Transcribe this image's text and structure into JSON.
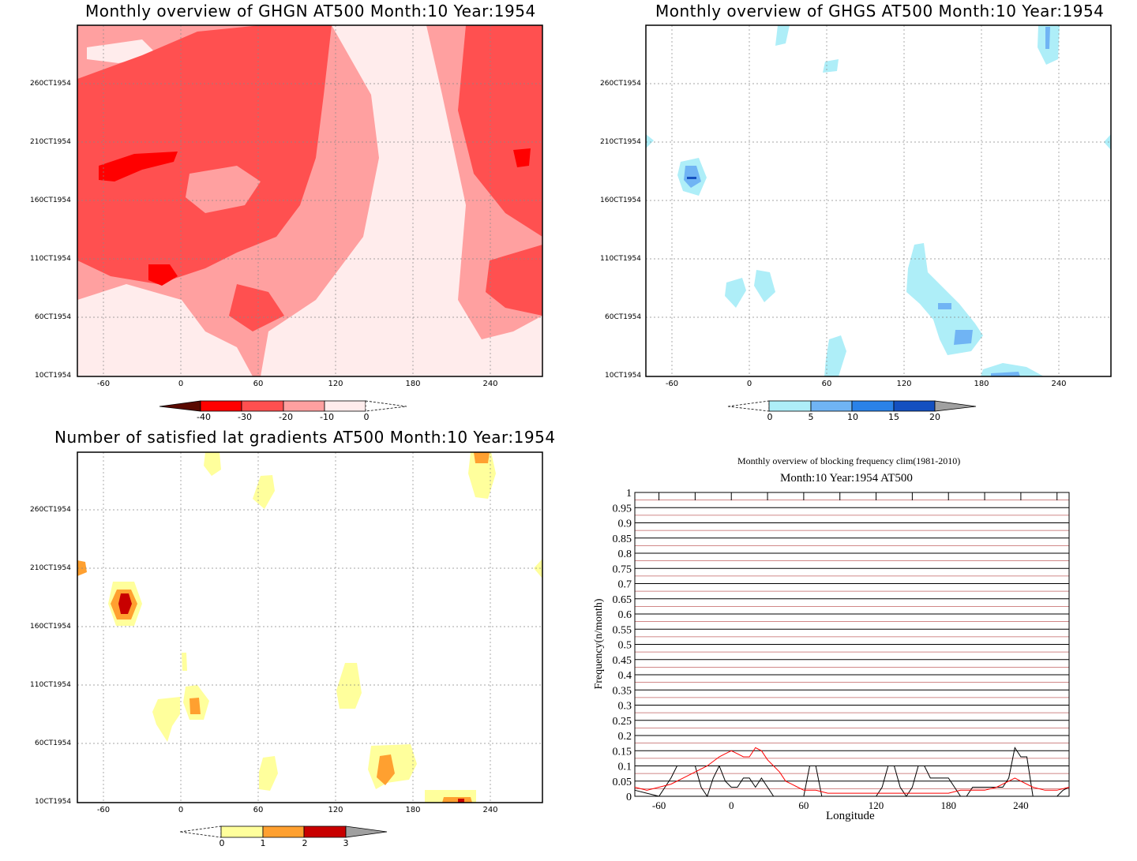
{
  "panels": {
    "ghgn": {
      "title": "Monthly overview of GHGN AT500 Month:10 Year:1954",
      "y_ticks": [
        "260CT1954",
        "210CT1954",
        "160CT1954",
        "110CT1954",
        "60CT1954",
        "10CT1954"
      ],
      "x_ticks": [
        "-60",
        "0",
        "60",
        "120",
        "180",
        "240"
      ],
      "colorbar": {
        "ticks": [
          "-40",
          "-30",
          "-20",
          "-10",
          "0"
        ],
        "colors": [
          "#5a0a00",
          "#ff0000",
          "#ff5050",
          "#ffa0a0",
          "#ffecec"
        ]
      }
    },
    "ghgs": {
      "title": "Monthly overview of GHGS AT500 Month:10 Year:1954",
      "y_ticks": [
        "260CT1954",
        "210CT1954",
        "160CT1954",
        "110CT1954",
        "60CT1954",
        "10CT1954"
      ],
      "x_ticks": [
        "-60",
        "0",
        "60",
        "120",
        "180",
        "240"
      ],
      "colorbar": {
        "ticks": [
          "0",
          "5",
          "10",
          "15",
          "20"
        ],
        "colors": [
          "#aeeef8",
          "#70b4f4",
          "#2a82e8",
          "#1450c0",
          "#a0a0a0"
        ]
      }
    },
    "gradients": {
      "title": "Number of satisfied lat gradients AT500 Month:10 Year:1954",
      "y_ticks": [
        "260CT1954",
        "210CT1954",
        "160CT1954",
        "110CT1954",
        "60CT1954",
        "10CT1954"
      ],
      "x_ticks": [
        "-60",
        "0",
        "60",
        "120",
        "180",
        "240"
      ],
      "colorbar": {
        "ticks": [
          "0",
          "1",
          "2",
          "3"
        ],
        "colors": [
          "#ffff9c",
          "#ffa030",
          "#c80000",
          "#a0a0a0"
        ]
      }
    },
    "frequency": {
      "title": "Monthly overview of blocking frequency clim(1981-2010)",
      "subtitle": "Month:10 Year:1954  AT500",
      "ylabel": "Frequency(n/month)",
      "xlabel": "Longitude"
    }
  },
  "chart_data": [
    {
      "type": "heatmap",
      "title": "Monthly overview of GHGN AT500 Month:10 Year:1954",
      "x_ticks": [
        -60,
        0,
        60,
        120,
        180,
        240
      ],
      "y_ticks": [
        "260CT1954",
        "210CT1954",
        "160CT1954",
        "110CT1954",
        "60CT1954",
        "10CT1954"
      ],
      "xlim": [
        -80,
        280
      ],
      "colorbar_levels": [
        -40,
        -30,
        -20,
        -10,
        0
      ],
      "grid": true
    },
    {
      "type": "heatmap",
      "title": "Monthly overview of GHGS AT500 Month:10 Year:1954",
      "x_ticks": [
        -60,
        0,
        60,
        120,
        180,
        240
      ],
      "y_ticks": [
        "260CT1954",
        "210CT1954",
        "160CT1954",
        "110CT1954",
        "60CT1954",
        "10CT1954"
      ],
      "xlim": [
        -80,
        280
      ],
      "colorbar_levels": [
        0,
        5,
        10,
        15,
        20
      ],
      "grid": true
    },
    {
      "type": "heatmap",
      "title": "Number of satisfied lat gradients AT500 Month:10 Year:1954",
      "x_ticks": [
        -60,
        0,
        60,
        120,
        180,
        240
      ],
      "y_ticks": [
        "260CT1954",
        "210CT1954",
        "160CT1954",
        "110CT1954",
        "60CT1954",
        "10CT1954"
      ],
      "xlim": [
        -80,
        280
      ],
      "colorbar_levels": [
        0,
        1,
        2,
        3
      ],
      "grid": true
    },
    {
      "type": "line",
      "title": "Monthly overview of blocking frequency clim(1981-2010)",
      "subtitle": "Month:10 Year:1954  AT500",
      "xlabel": "Longitude",
      "ylabel": "Frequency(n/month)",
      "xlim": [
        -80,
        280
      ],
      "ylim": [
        0,
        1
      ],
      "x_ticks": [
        -60,
        0,
        60,
        120,
        180,
        240
      ],
      "y_ticks": [
        0,
        0.05,
        0.1,
        0.15,
        0.2,
        0.25,
        0.3,
        0.35,
        0.4,
        0.45,
        0.5,
        0.55,
        0.6,
        0.65,
        0.7,
        0.75,
        0.8,
        0.85,
        0.9,
        0.95,
        1
      ],
      "series": [
        {
          "color": "#000000",
          "x": [
            -80,
            -60,
            -55,
            -50,
            -45,
            -40,
            -30,
            -25,
            -20,
            -15,
            -10,
            -5,
            0,
            5,
            10,
            15,
            20,
            25,
            30,
            35,
            40,
            45,
            50,
            55,
            60,
            65,
            70,
            75,
            80,
            85,
            90,
            95,
            100,
            105,
            110,
            115,
            120,
            125,
            130,
            135,
            140,
            145,
            150,
            155,
            160,
            165,
            170,
            175,
            180,
            185,
            190,
            195,
            200,
            205,
            210,
            215,
            220,
            225,
            230,
            235,
            240,
            245,
            250,
            255,
            260,
            265,
            270,
            275,
            280
          ],
          "y": [
            0.02,
            0,
            0.03,
            0.06,
            0.1,
            0.1,
            0.1,
            0.03,
            0,
            0.06,
            0.1,
            0.05,
            0.03,
            0.03,
            0.06,
            0.06,
            0.03,
            0.06,
            0.03,
            0,
            0,
            0,
            0,
            0,
            0,
            0.1,
            0.1,
            0,
            0,
            0,
            0,
            0,
            0,
            0,
            0,
            0,
            0,
            0.03,
            0.1,
            0.1,
            0.03,
            0,
            0.03,
            0.1,
            0.1,
            0.06,
            0.06,
            0.06,
            0.06,
            0.03,
            0,
            0,
            0.03,
            0.03,
            0.03,
            0.03,
            0.03,
            0.03,
            0.06,
            0.16,
            0.13,
            0.13,
            0,
            0,
            0,
            0,
            0,
            0.02,
            0.03
          ]
        },
        {
          "color": "#ff0000",
          "x": [
            -80,
            -70,
            -60,
            -50,
            -40,
            -30,
            -20,
            -10,
            -5,
            0,
            5,
            10,
            15,
            20,
            25,
            30,
            35,
            40,
            45,
            50,
            55,
            60,
            70,
            80,
            90,
            100,
            110,
            120,
            130,
            140,
            150,
            160,
            170,
            180,
            190,
            200,
            210,
            220,
            225,
            230,
            235,
            240,
            250,
            260,
            270,
            280
          ],
          "y": [
            0.03,
            0.02,
            0.03,
            0.04,
            0.06,
            0.08,
            0.1,
            0.13,
            0.14,
            0.15,
            0.14,
            0.13,
            0.13,
            0.16,
            0.15,
            0.12,
            0.1,
            0.08,
            0.05,
            0.04,
            0.03,
            0.02,
            0.02,
            0.01,
            0.01,
            0.01,
            0.01,
            0.01,
            0.01,
            0.01,
            0.01,
            0.01,
            0.01,
            0.01,
            0.02,
            0.02,
            0.02,
            0.03,
            0.04,
            0.05,
            0.06,
            0.05,
            0.03,
            0.02,
            0.02,
            0.03
          ]
        }
      ]
    }
  ]
}
